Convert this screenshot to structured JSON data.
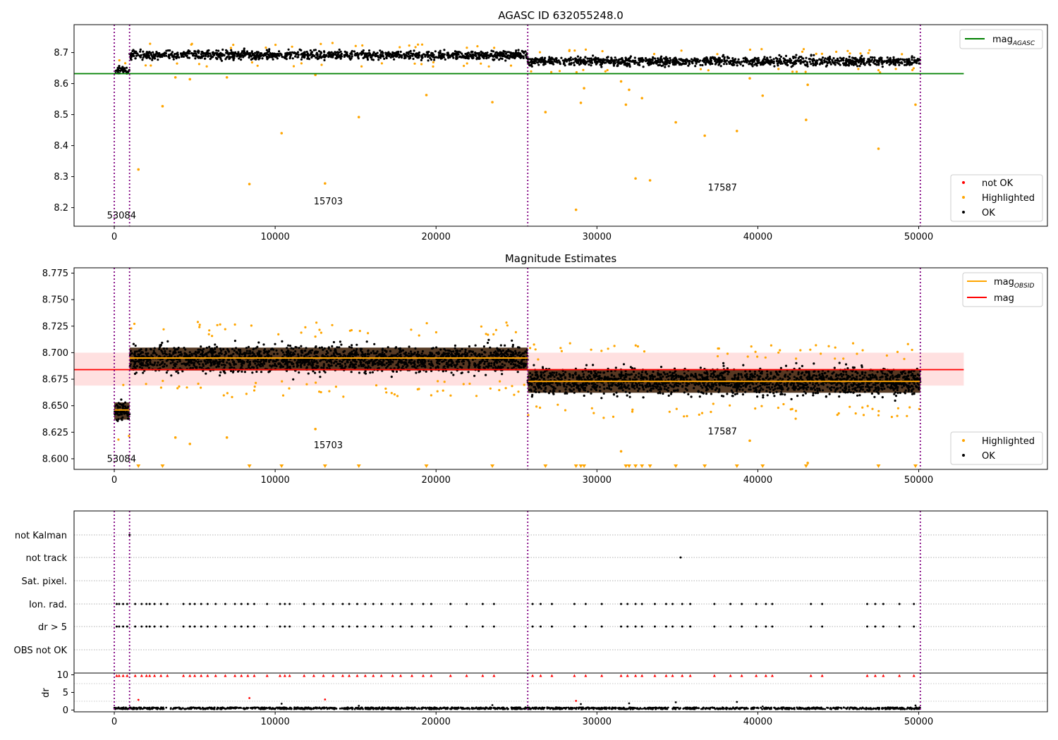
{
  "chart_data": [
    {
      "type": "scatter",
      "title": "AGASC ID 632055248.0",
      "xlim": [
        -2500,
        58000
      ],
      "ylim": [
        8.14,
        8.79
      ],
      "xticks": [
        0,
        10000,
        20000,
        30000,
        40000,
        50000
      ],
      "yticks": [
        8.2,
        8.3,
        8.4,
        8.5,
        8.6,
        8.7
      ],
      "ytick_decimals": 1,
      "legend_upper": [
        {
          "label": "mag",
          "sub": "AGASC",
          "color": "#008000"
        }
      ],
      "legend_lower": [
        {
          "label": "not OK",
          "color": "#ff0000"
        },
        {
          "label": "Highlighted",
          "color": "#ffa500"
        },
        {
          "label": "OK",
          "color": "#000000"
        }
      ],
      "mag_agasc": 8.632,
      "obs_boundaries": [
        0,
        950,
        25700,
        50100
      ],
      "obsid_labels": [
        {
          "text": "53084",
          "x": 450,
          "y": 8.165
        },
        {
          "text": "15703",
          "x": 13300,
          "y": 8.21
        },
        {
          "text": "17587",
          "x": 37800,
          "y": 8.255
        }
      ],
      "ok_bands": [
        {
          "x0": 0,
          "x1": 950,
          "center": 8.643,
          "spread": 0.012
        },
        {
          "x0": 950,
          "x1": 25700,
          "center": 8.692,
          "spread": 0.014
        },
        {
          "x0": 25700,
          "x1": 50100,
          "center": 8.672,
          "spread": 0.014
        }
      ],
      "highlighted_outliers": [
        [
          1500,
          8.323
        ],
        [
          3000,
          8.527
        ],
        [
          3800,
          8.62
        ],
        [
          4700,
          8.614
        ],
        [
          7000,
          8.62
        ],
        [
          8400,
          8.276
        ],
        [
          10400,
          8.44
        ],
        [
          12500,
          8.628
        ],
        [
          13100,
          8.278
        ],
        [
          15200,
          8.492
        ],
        [
          19400,
          8.563
        ],
        [
          23500,
          8.54
        ],
        [
          26800,
          8.508
        ],
        [
          28700,
          8.193
        ],
        [
          29000,
          8.538
        ],
        [
          29200,
          8.585
        ],
        [
          31500,
          8.607
        ],
        [
          31800,
          8.532
        ],
        [
          32000,
          8.58
        ],
        [
          32400,
          8.294
        ],
        [
          32800,
          8.553
        ],
        [
          33300,
          8.288
        ],
        [
          34900,
          8.475
        ],
        [
          36700,
          8.432
        ],
        [
          38700,
          8.447
        ],
        [
          39500,
          8.617
        ],
        [
          40300,
          8.561
        ],
        [
          43000,
          8.483
        ],
        [
          43100,
          8.596
        ],
        [
          47500,
          8.39
        ],
        [
          49800,
          8.532
        ]
      ]
    },
    {
      "type": "scatter",
      "title": "Magnitude Estimates",
      "xlim": [
        -2500,
        58000
      ],
      "ylim": [
        8.59,
        8.78
      ],
      "xticks": [
        0,
        10000,
        20000,
        30000,
        40000,
        50000
      ],
      "yticks": [
        8.6,
        8.625,
        8.65,
        8.675,
        8.7,
        8.725,
        8.75,
        8.775
      ],
      "ytick_decimals": 3,
      "legend_upper": [
        {
          "label": "mag",
          "sub": "OBSID",
          "color": "#ffa500"
        },
        {
          "label": "mag",
          "sub": "",
          "color": "#ff0000"
        }
      ],
      "legend_lower": [
        {
          "label": "Highlighted",
          "color": "#ffa500"
        },
        {
          "label": "OK",
          "color": "#000000"
        }
      ],
      "mag": 8.684,
      "mag_band": [
        8.669,
        8.7
      ],
      "mag_obsid": [
        {
          "x0": 0,
          "x1": 950,
          "value": 8.646
        },
        {
          "x0": 950,
          "x1": 25700,
          "value": 8.695
        },
        {
          "x0": 25700,
          "x1": 50100,
          "value": 8.673
        }
      ],
      "obs_boundaries": [
        0,
        950,
        25700,
        50100
      ],
      "obsid_labels": [
        {
          "text": "53084",
          "x": 450,
          "y": 8.597
        },
        {
          "text": "15703",
          "x": 13300,
          "y": 8.61
        },
        {
          "text": "17587",
          "x": 37800,
          "y": 8.623
        }
      ],
      "ok_bands": [
        {
          "x0": 0,
          "x1": 950,
          "center": 8.645,
          "spread": 0.009
        },
        {
          "x0": 950,
          "x1": 25700,
          "center": 8.694,
          "spread": 0.012
        },
        {
          "x0": 25700,
          "x1": 50100,
          "center": 8.673,
          "spread": 0.012
        }
      ],
      "clipped_x": [
        1500,
        3000,
        8400,
        10400,
        13100,
        15200,
        19400,
        23500,
        26800,
        28700,
        29000,
        29200,
        31800,
        32000,
        32400,
        32800,
        33300,
        34900,
        36700,
        38700,
        40300,
        43000,
        47500,
        49800
      ]
    },
    {
      "type": "scatter",
      "title": "",
      "xlim": [
        -2500,
        58000
      ],
      "xticks": [
        0,
        10000,
        20000,
        30000,
        40000,
        50000
      ],
      "flag_labels": [
        "not Kalman",
        "not track",
        "Sat. pixel.",
        "Ion. rad.",
        "dr > 5",
        "OBS not OK"
      ],
      "dr_label": "dr",
      "dr_ylim": [
        -0.5,
        10.5
      ],
      "dr_yticks": [
        0,
        5,
        10
      ],
      "obs_boundaries": [
        0,
        950,
        25700,
        50100
      ],
      "flag_events": {
        "not Kalman": [
          950
        ],
        "not track": [
          35200
        ],
        "Ion. rad.": [
          150,
          300,
          550,
          800,
          1300,
          1700,
          2000,
          2200,
          2500,
          2900,
          3300,
          4300,
          4700,
          5000,
          5400,
          5800,
          6300,
          6900,
          7500,
          7900,
          8300,
          8700,
          9500,
          10300,
          10600,
          10900,
          11800,
          12400,
          13000,
          13600,
          14200,
          14600,
          15100,
          15600,
          16100,
          16600,
          17300,
          17800,
          18500,
          19200,
          19700,
          20900,
          21900,
          22900,
          23600,
          26000,
          26500,
          27200,
          28600,
          29300,
          30300,
          31500,
          31900,
          32400,
          32800,
          33600,
          34300,
          34700,
          35300,
          35800,
          37300,
          38300,
          39000,
          39900,
          40500,
          40900,
          43300,
          44000,
          46800,
          47300,
          47800,
          48800,
          49700
        ],
        "dr > 5": [
          150,
          300,
          550,
          800,
          1300,
          1700,
          2000,
          2200,
          2500,
          2900,
          3300,
          4300,
          4700,
          5000,
          5400,
          5800,
          6300,
          6900,
          7500,
          7900,
          8300,
          8700,
          9500,
          10300,
          10600,
          10900,
          11800,
          12400,
          13000,
          13600,
          14200,
          14600,
          15100,
          15600,
          16100,
          16600,
          17300,
          17800,
          18500,
          19200,
          19700,
          20900,
          21900,
          22900,
          23600,
          26000,
          26500,
          27200,
          28600,
          29300,
          30300,
          31500,
          31900,
          32400,
          32800,
          33600,
          34300,
          34700,
          35300,
          35800,
          37300,
          38300,
          39000,
          39900,
          40500,
          40900,
          43300,
          44000,
          46800,
          47300,
          47800,
          48800,
          49700
        ]
      },
      "dr_outliers": [
        [
          1500,
          2.9
        ],
        [
          8400,
          3.4
        ],
        [
          10400,
          1.8
        ],
        [
          13100,
          3.0
        ],
        [
          15200,
          1.2
        ],
        [
          23500,
          1.4
        ],
        [
          28700,
          2.6
        ],
        [
          29000,
          1.7
        ],
        [
          32000,
          1.9
        ],
        [
          34900,
          2.2
        ],
        [
          38700,
          2.3
        ],
        [
          40300,
          1.0
        ],
        [
          49800,
          1.3
        ]
      ]
    }
  ]
}
